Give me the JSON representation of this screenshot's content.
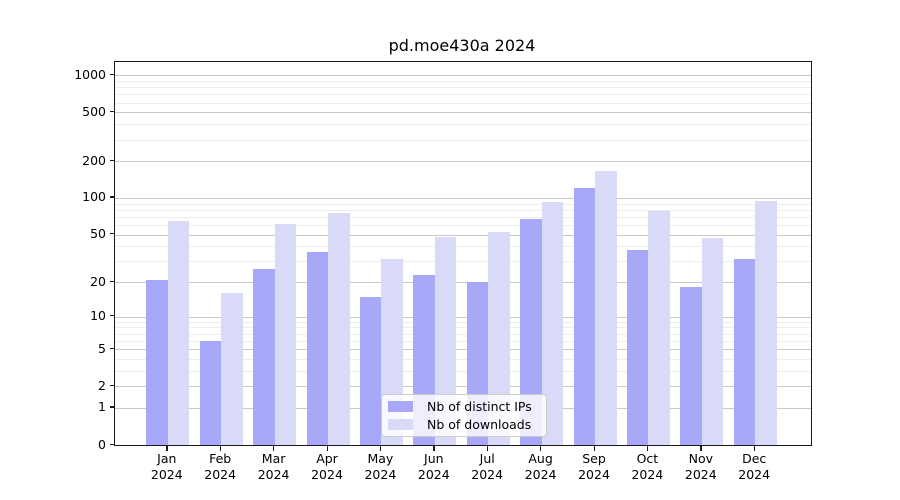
{
  "figure": {
    "title": "pd.moe430a 2024"
  },
  "chart_data": {
    "type": "bar",
    "title": "pd.moe430a 2024",
    "categories": [
      "Jan",
      "Feb",
      "Mar",
      "Apr",
      "May",
      "Jun",
      "Jul",
      "Aug",
      "Sep",
      "Oct",
      "Nov",
      "Dec"
    ],
    "category_year": "2024",
    "series": [
      {
        "name": "Nb of distinct IPs",
        "color": "#a8a8f8",
        "values": [
          21,
          6,
          26,
          36,
          15,
          23,
          20,
          67,
          120,
          37,
          18,
          31
        ]
      },
      {
        "name": "Nb of downloads",
        "color": "#d9d9f8",
        "values": [
          65,
          16,
          61,
          75,
          31,
          48,
          52,
          93,
          165,
          78,
          47,
          94
        ]
      }
    ],
    "xlabel": "",
    "ylabel": "",
    "y_scale": "log1p",
    "y_max": 1280,
    "y_ticks": [
      0,
      1,
      2,
      5,
      10,
      20,
      50,
      100,
      200,
      500,
      1000
    ],
    "y_minor_ticks": [
      3,
      4,
      6,
      7,
      8,
      9,
      30,
      40,
      60,
      70,
      80,
      90,
      300,
      400,
      600,
      700,
      800,
      900
    ],
    "grid": true,
    "legend_position": "inside-bottom-center"
  },
  "colors": {
    "major_grid": "#c9c9c9",
    "minor_grid": "#ededed",
    "spine": "#1a1a1a"
  }
}
